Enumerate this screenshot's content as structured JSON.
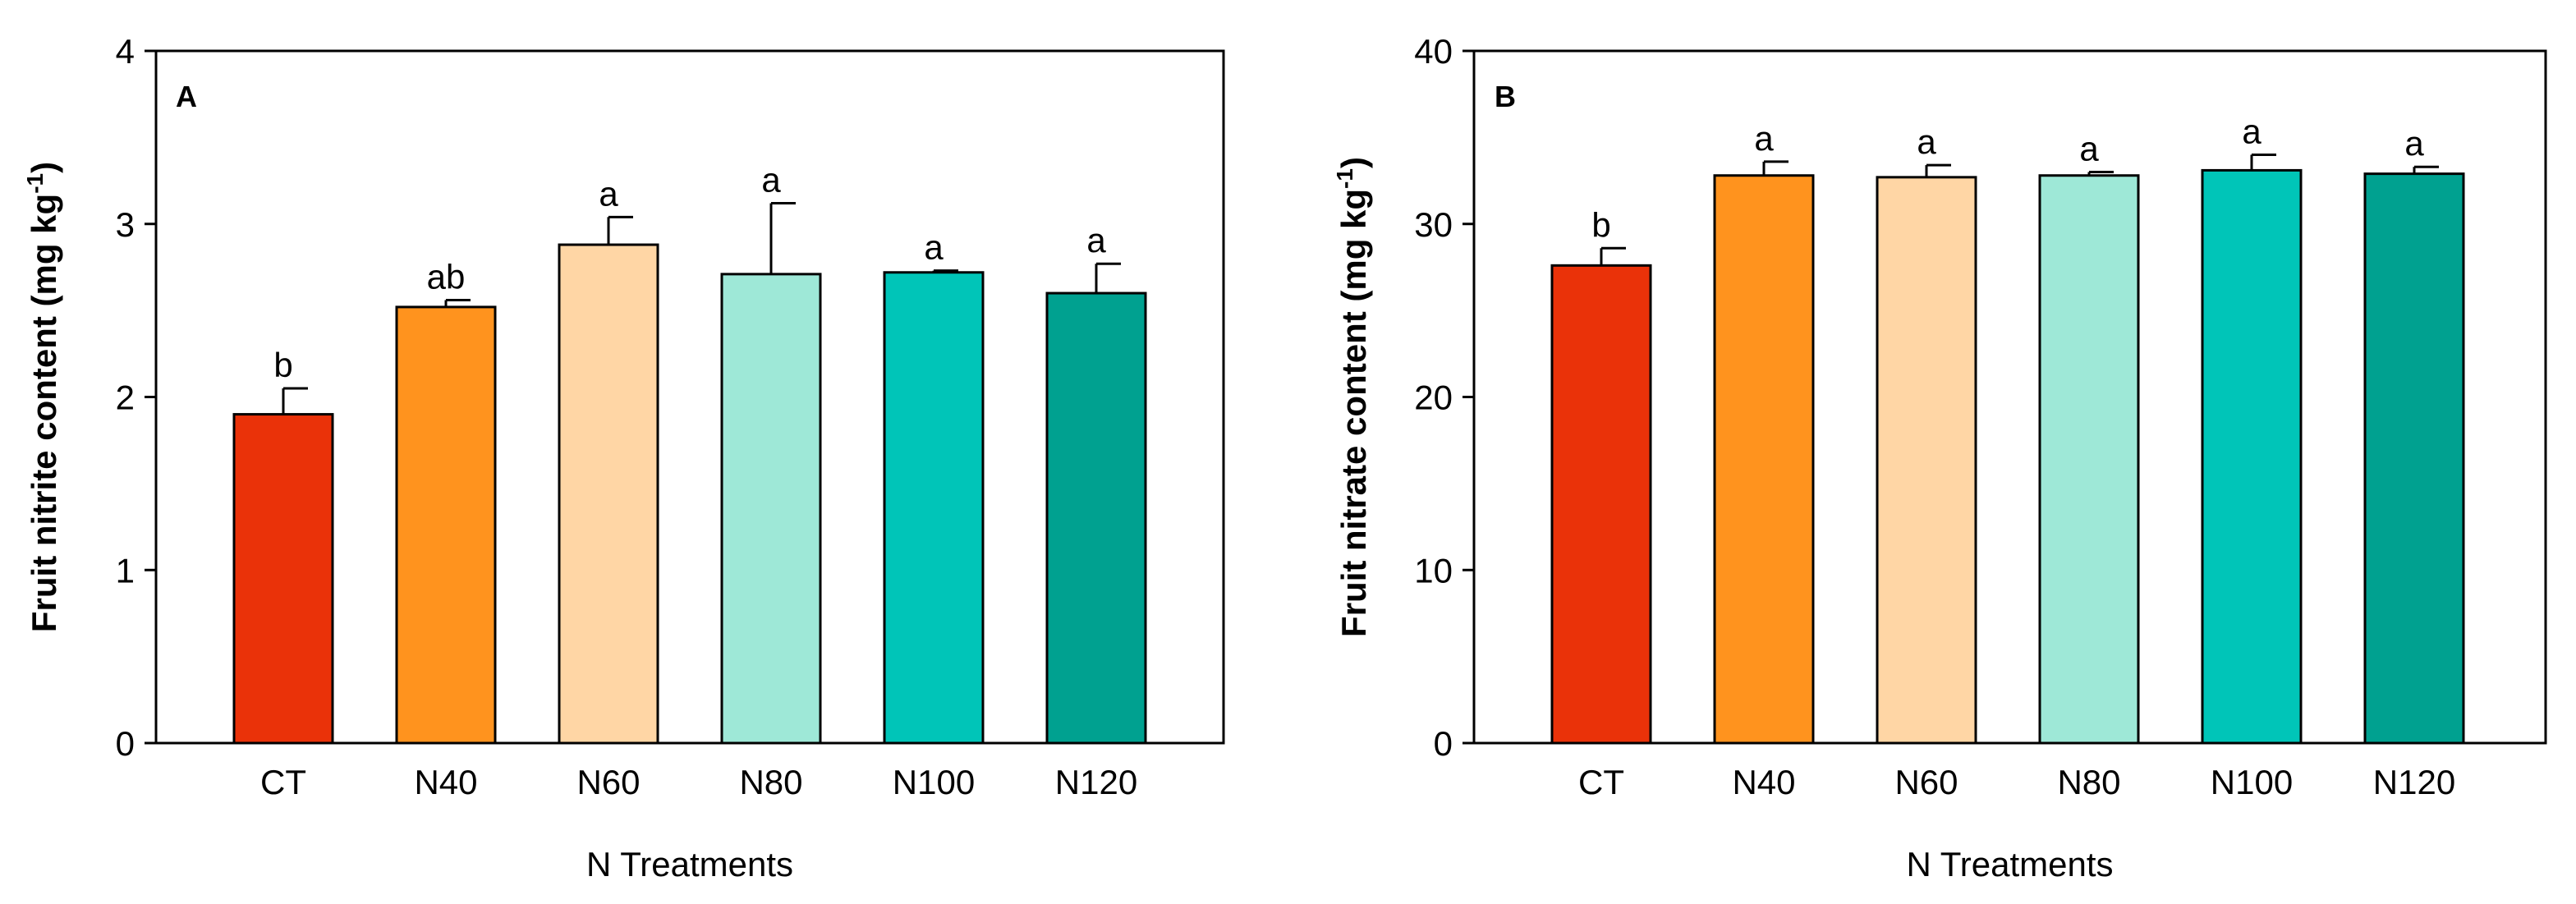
{
  "chart_data": [
    {
      "type": "bar",
      "panel_label": "A",
      "categories": [
        "CT",
        "N40",
        "N60",
        "N80",
        "N100",
        "N120"
      ],
      "values": [
        1.9,
        2.52,
        2.88,
        2.71,
        2.72,
        2.6
      ],
      "errors": [
        0.15,
        0.04,
        0.16,
        0.41,
        0.01,
        0.17
      ],
      "significance": [
        "b",
        "ab",
        "a",
        "a",
        "a",
        "a"
      ],
      "colors": [
        "#EA3209",
        "#FF931E",
        "#FFD6A5",
        "#9EE8D7",
        "#00C5B8",
        "#00A190"
      ],
      "ylim": [
        0,
        4
      ],
      "yticks": [
        0,
        1,
        2,
        3,
        4
      ],
      "xlabel": "N Treatments",
      "ylabel_main": "Fruit nitrite content (mg kg",
      "ylabel_sup": "-1",
      "ylabel_end": ")"
    },
    {
      "type": "bar",
      "panel_label": "B",
      "categories": [
        "CT",
        "N40",
        "N60",
        "N80",
        "N100",
        "N120"
      ],
      "values": [
        27.6,
        32.8,
        32.7,
        32.8,
        33.1,
        32.9
      ],
      "errors": [
        1.0,
        0.8,
        0.7,
        0.2,
        0.9,
        0.4
      ],
      "significance": [
        "b",
        "a",
        "a",
        "a",
        "a",
        "a"
      ],
      "colors": [
        "#EA3209",
        "#FF931E",
        "#FFD6A5",
        "#9EE8D7",
        "#00C5B8",
        "#00A190"
      ],
      "ylim": [
        0,
        40
      ],
      "yticks": [
        0,
        10,
        20,
        30,
        40
      ],
      "xlabel": "N Treatments",
      "ylabel_main": "Fruit nitrate content (mg kg",
      "ylabel_sup": "-1",
      "ylabel_end": ")"
    }
  ]
}
